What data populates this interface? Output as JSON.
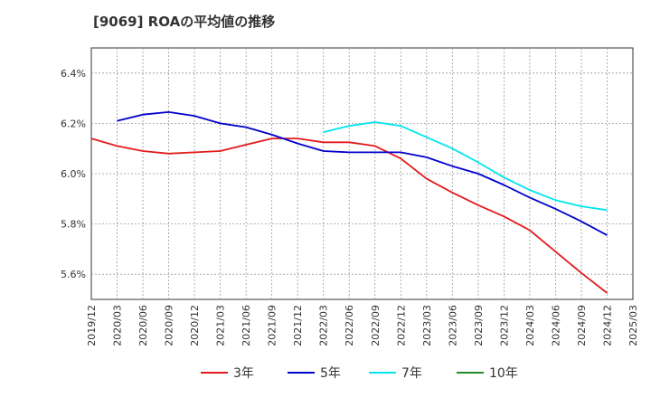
{
  "chart_data": {
    "type": "line",
    "title": "[9069]  ROAの平均値の推移",
    "xlabel": "",
    "ylabel": "",
    "ylim": [
      5.5,
      6.5
    ],
    "grid": true,
    "legend_position": "bottom",
    "x_tick_labels": [
      "2019/12",
      "2020/03",
      "2020/06",
      "2020/09",
      "2020/12",
      "2021/03",
      "2021/06",
      "2021/09",
      "2021/12",
      "2022/03",
      "2022/06",
      "2022/09",
      "2022/12",
      "2023/03",
      "2023/06",
      "2023/09",
      "2023/12",
      "2024/03",
      "2024/06",
      "2024/09",
      "2024/12",
      "2025/03"
    ],
    "y_ticks": [
      {
        "value": 5.6,
        "label": "5.6%"
      },
      {
        "value": 5.8,
        "label": "5.8%"
      },
      {
        "value": 6.0,
        "label": "6.0%"
      },
      {
        "value": 6.2,
        "label": "6.2%"
      },
      {
        "value": 6.4,
        "label": "6.4%"
      }
    ],
    "series": [
      {
        "name": "3年",
        "color": "#e41a1c",
        "x": [
          "2019/12",
          "2020/03",
          "2020/06",
          "2020/09",
          "2020/12",
          "2021/03",
          "2021/06",
          "2021/09",
          "2021/12",
          "2022/03",
          "2022/06",
          "2022/09",
          "2022/12",
          "2023/03",
          "2023/06",
          "2023/09",
          "2023/12",
          "2024/03",
          "2024/06",
          "2024/09",
          "2024/12"
        ],
        "values": [
          6.14,
          6.11,
          6.09,
          6.08,
          6.085,
          6.09,
          6.115,
          6.14,
          6.14,
          6.125,
          6.125,
          6.11,
          6.06,
          5.98,
          5.925,
          5.875,
          5.83,
          5.775,
          5.69,
          5.605,
          5.525
        ]
      },
      {
        "name": "5年",
        "color": "#0000cc",
        "x": [
          "2020/03",
          "2020/06",
          "2020/09",
          "2020/12",
          "2021/03",
          "2021/06",
          "2021/09",
          "2021/12",
          "2022/03",
          "2022/06",
          "2022/09",
          "2022/12",
          "2023/03",
          "2023/06",
          "2023/09",
          "2023/12",
          "2024/03",
          "2024/06",
          "2024/09",
          "2024/12"
        ],
        "values": [
          6.21,
          6.235,
          6.245,
          6.23,
          6.2,
          6.185,
          6.155,
          6.12,
          6.09,
          6.085,
          6.085,
          6.085,
          6.065,
          6.03,
          6.0,
          5.955,
          5.905,
          5.86,
          5.81,
          5.755
        ]
      },
      {
        "name": "7年",
        "color": "#00e5ee",
        "x": [
          "2022/03",
          "2022/06",
          "2022/09",
          "2022/12",
          "2023/03",
          "2023/06",
          "2023/09",
          "2023/12",
          "2024/03",
          "2024/06",
          "2024/09",
          "2024/12"
        ],
        "values": [
          6.165,
          6.19,
          6.205,
          6.19,
          6.145,
          6.1,
          6.045,
          5.985,
          5.935,
          5.895,
          5.87,
          5.855
        ]
      },
      {
        "name": "10年",
        "color": "#228b22",
        "x": [],
        "values": []
      }
    ]
  }
}
